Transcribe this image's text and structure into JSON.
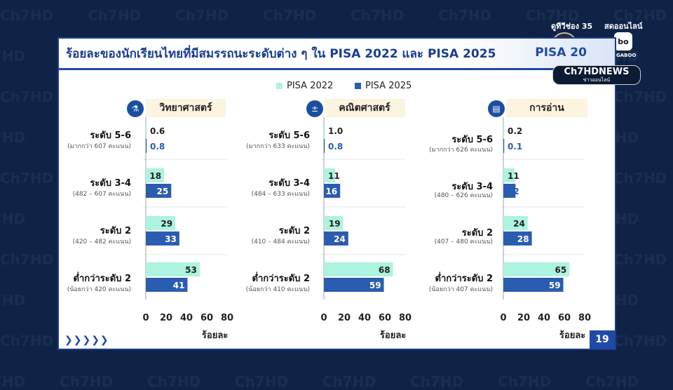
{
  "channel": {
    "watermark": "Ch7HD",
    "top_left_label": "ดูทีวีช่อง 35",
    "top_right_label": "สดออนไลน์",
    "logo_7": "7",
    "logo_bb": "bo",
    "logo_bb_caption": "BUGABOO",
    "news_logo": "Ch7HDNEWS",
    "news_sub": "ข่าวออนไลน์"
  },
  "slide": {
    "title": "ร้อยละของนักเรียนไทยที่มีสมรรถนะระดับต่าง ๆ ใน PISA 2022 และ PISA 2025",
    "logo_text": "PISA 20",
    "page_number": "19",
    "arrows": "❯❯❯❯❯"
  },
  "colors": {
    "pisa2022": "#aef2e0",
    "pisa2025": "#2a5db0",
    "accent": "#1f4aa8"
  },
  "chart_data": [
    {
      "type": "bar",
      "title": "วิทยาศาสตร์",
      "icon": "science-icon",
      "categories": [
        "ระดับ 5-6",
        "ระดับ 3-4",
        "ระดับ 2",
        "ต่ำกว่าระดับ 2"
      ],
      "category_notes": [
        "(มากกว่า 607 คะแนน)",
        "(482 – 607 คะแนน)",
        "(420 – 482 คะแนน)",
        "(น้อยกว่า 420 คะแนน)"
      ],
      "series": [
        {
          "name": "PISA 2022",
          "values": [
            0.6,
            18,
            29,
            53
          ],
          "labels": [
            "0.6",
            "18",
            "29",
            "53"
          ]
        },
        {
          "name": "PISA 2025",
          "values": [
            0.8,
            25,
            33,
            41
          ],
          "labels": [
            "0.8",
            "25",
            "33",
            "41"
          ]
        }
      ],
      "xlim": [
        0,
        80
      ],
      "xticks": [
        "0",
        "20",
        "40",
        "60",
        "80"
      ],
      "xlabel": "ร้อยละ"
    },
    {
      "type": "bar",
      "title": "คณิตศาสตร์",
      "icon": "math-icon",
      "categories": [
        "ระดับ 5-6",
        "ระดับ 3-4",
        "ระดับ 2",
        "ต่ำกว่าระดับ 2"
      ],
      "category_notes": [
        "(มากกว่า 633 คะแนน)",
        "(484 – 633 คะแนน)",
        "(410 – 484 คะแนน)",
        "(น้อยกว่า 410 คะแนน)"
      ],
      "series": [
        {
          "name": "PISA 2022",
          "values": [
            1.0,
            11,
            19,
            68
          ],
          "labels": [
            "1.0",
            "11",
            "19",
            "68"
          ]
        },
        {
          "name": "PISA 2025",
          "values": [
            0.8,
            16,
            24,
            59
          ],
          "labels": [
            "0.8",
            "16",
            "24",
            "59"
          ]
        }
      ],
      "xlim": [
        0,
        80
      ],
      "xticks": [
        "0",
        "20",
        "40",
        "60",
        "80"
      ],
      "xlabel": "ร้อยละ"
    },
    {
      "type": "bar",
      "title": "การอ่าน",
      "icon": "book-icon",
      "categories": [
        "ระดับ 5-6",
        "ระดับ 3-4",
        "ระดับ 2",
        "ต่ำกว่าระดับ 2"
      ],
      "category_notes": [
        "(มากกว่า 626 คะแนน)",
        "(480 – 626 คะแนน)",
        "(407 – 480 คะแนน)",
        "(น้อยกว่า 407 คะแนน)"
      ],
      "series": [
        {
          "name": "PISA 2022",
          "values": [
            0.2,
            11,
            24,
            65
          ],
          "labels": [
            "0.2",
            "11",
            "24",
            "65"
          ]
        },
        {
          "name": "PISA 2025",
          "values": [
            0.1,
            12,
            28,
            59
          ],
          "labels": [
            "0.1",
            "12",
            "28",
            "59"
          ]
        }
      ],
      "xlim": [
        0,
        80
      ],
      "xticks": [
        "0",
        "20",
        "40",
        "60",
        "80"
      ],
      "xlabel": "ร้อยละ"
    }
  ]
}
